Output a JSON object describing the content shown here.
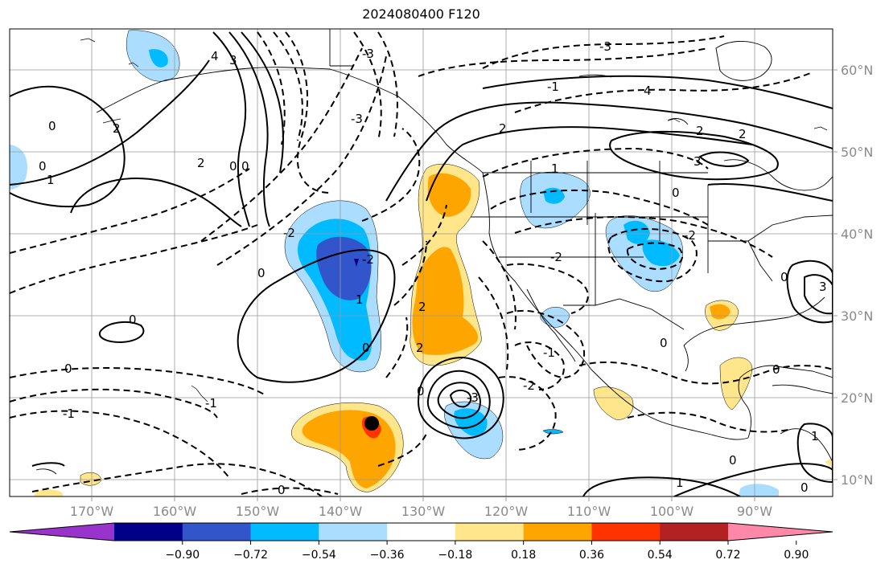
{
  "title": "2024080400 F120",
  "latitude_labels": [
    "60°N",
    "50°N",
    "40°N",
    "30°N",
    "20°N",
    "10°N"
  ],
  "longitude_labels": [
    "170°W",
    "160°W",
    "150°W",
    "140°W",
    "130°W",
    "120°W",
    "110°W",
    "100°W",
    "90°W"
  ],
  "colorbar": {
    "ticks": [
      "−0.90",
      "−0.72",
      "−0.54",
      "−0.36",
      "−0.18",
      "0.18",
      "0.36",
      "0.54",
      "0.72",
      "0.90"
    ],
    "colors": [
      "#9933cc",
      "#000088",
      "#3355cc",
      "#00bbff",
      "#aaddff",
      "#ffffff",
      "#ffe68a",
      "#ffa500",
      "#ff3300",
      "#b22222",
      "#ff88aa"
    ]
  },
  "contour_labels": [
    "0",
    "1",
    "2",
    "-1",
    "-2",
    "-3",
    "-4",
    "3",
    "4"
  ],
  "marker": "storm-center"
}
